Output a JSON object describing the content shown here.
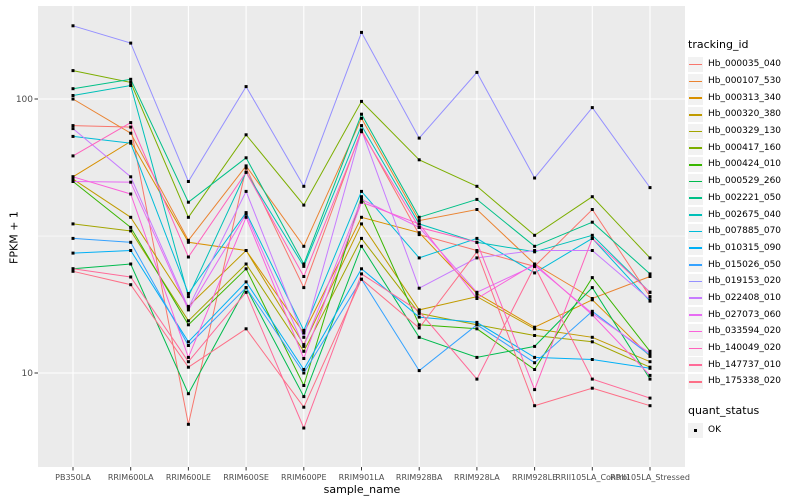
{
  "chart_data": {
    "type": "line",
    "title": "",
    "xlabel": "sample_name",
    "ylabel": "FPKM + 1",
    "yscale": "log10",
    "yticks": [
      10,
      100
    ],
    "y_minor_breaks": [
      31.6
    ],
    "ylim": [
      5.5,
      210
    ],
    "grid": true,
    "legend_position": "right",
    "legend_title": "tracking_id",
    "legend2_title": "quant_status",
    "legend2_items": [
      "OK"
    ],
    "point_shape": "filled-square",
    "point_color": "#000000",
    "panel_background": "#EBEBEB",
    "gridline_color": "#FFFFFF",
    "tick_label_color": "#4D4D4D",
    "categories": [
      "PB350LA",
      "RRIM600LA",
      "RRIM600LE",
      "RRIM600SE",
      "RRIM600PE",
      "RRIM901LA",
      "RRIM928BA",
      "RRIM928LA",
      "RRIM928LE",
      "RRII105LA_Control",
      "RRII105LA_Stressed"
    ],
    "series": [
      {
        "name": "Hb_000035_040",
        "color": "#F8766D",
        "values": [
          80,
          79,
          6.5,
          56,
          20.5,
          77,
          32,
          28,
          24.5,
          39.5,
          19
        ]
      },
      {
        "name": "Hb_000107_530",
        "color": "#EA8331",
        "values": [
          100,
          75,
          30.5,
          57,
          29,
          85,
          36,
          39.5,
          25,
          18.7,
          22.5
        ]
      },
      {
        "name": "Hb_000313_340",
        "color": "#D89000",
        "values": [
          52,
          70,
          30,
          28,
          14,
          37,
          32.5,
          19.5,
          14.7,
          18.5,
          11.5
        ]
      },
      {
        "name": "Hb_000320_380",
        "color": "#C09B00",
        "values": [
          51,
          37,
          17.5,
          28,
          12.7,
          35,
          17,
          19,
          14.5,
          13.5,
          11
        ]
      },
      {
        "name": "Hb_000329_130",
        "color": "#A3A500",
        "values": [
          35,
          33,
          15.5,
          25,
          12,
          31,
          16.5,
          15,
          13.7,
          13,
          10.5
        ]
      },
      {
        "name": "Hb_000417_160",
        "color": "#7CAE00",
        "values": [
          127,
          115,
          37,
          74,
          41,
          98,
          60,
          48,
          31.8,
          44,
          26.3
        ]
      },
      {
        "name": "Hb_000424_010",
        "color": "#39B600",
        "values": [
          50,
          34,
          15,
          24,
          9,
          44,
          15,
          14.5,
          10.3,
          22.3,
          12
        ]
      },
      {
        "name": "Hb_000529_260",
        "color": "#00BB4E",
        "values": [
          24,
          25,
          8.4,
          20.5,
          8.2,
          29,
          13.5,
          11.4,
          12.5,
          20.5,
          9.5
        ]
      },
      {
        "name": "Hb_002221_050",
        "color": "#00C087",
        "values": [
          109,
          118,
          42,
          61,
          25,
          88,
          37,
          43,
          29,
          35.5,
          23
        ]
      },
      {
        "name": "Hb_002675_040",
        "color": "#00C0B8",
        "values": [
          103,
          112,
          19,
          54,
          24.5,
          80,
          35,
          30,
          27.7,
          31.8,
          19.7
        ]
      },
      {
        "name": "Hb_007885_070",
        "color": "#00BCD8",
        "values": [
          73,
          69,
          19.5,
          38.5,
          14.3,
          46,
          26.3,
          31,
          23.2,
          31,
          18.3
        ]
      },
      {
        "name": "Hb_010315_090",
        "color": "#00B0F6",
        "values": [
          27.4,
          28,
          13,
          21.5,
          10.3,
          24,
          16,
          15.3,
          11.4,
          11.2,
          10.4
        ]
      },
      {
        "name": "Hb_015026_050",
        "color": "#35A2FF",
        "values": [
          31,
          30,
          12.6,
          20.5,
          10,
          22,
          10.2,
          15,
          10.9,
          16.8,
          11.6
        ]
      },
      {
        "name": "Hb_019153_020",
        "color": "#9590FF",
        "values": [
          185,
          160,
          50,
          111,
          48,
          175,
          72,
          125,
          51.5,
          93,
          47.5
        ]
      },
      {
        "name": "Hb_022408_010",
        "color": "#C77CFF",
        "values": [
          78,
          52,
          17.3,
          46,
          13.5,
          77,
          20.4,
          26.3,
          28,
          28,
          18.5
        ]
      },
      {
        "name": "Hb_027073_060",
        "color": "#E76BF3",
        "values": [
          50,
          49.7,
          17,
          38,
          12.5,
          43,
          34,
          19.7,
          24.7,
          16.5,
          11.8
        ]
      },
      {
        "name": "Hb_033594_020",
        "color": "#FA62DB",
        "values": [
          52,
          45,
          11.4,
          37,
          11.3,
          42,
          35,
          18.7,
          25,
          16.3,
          9.8
        ]
      },
      {
        "name": "Hb_140049_020",
        "color": "#FF62BC",
        "values": [
          62,
          82,
          26.5,
          54,
          22.5,
          76,
          34,
          30,
          8.7,
          31,
          19.7
        ]
      },
      {
        "name": "Hb_147737_010",
        "color": "#FF6A98",
        "values": [
          24,
          22.4,
          11,
          19.7,
          6.3,
          23,
          16.8,
          9.5,
          24.5,
          9.5,
          8.1
        ]
      },
      {
        "name": "Hb_175338_020",
        "color": "#FD6F87",
        "values": [
          23.5,
          21,
          10.5,
          14.5,
          7.5,
          22,
          14.6,
          27.7,
          7.6,
          8.8,
          7.6
        ]
      }
    ]
  }
}
